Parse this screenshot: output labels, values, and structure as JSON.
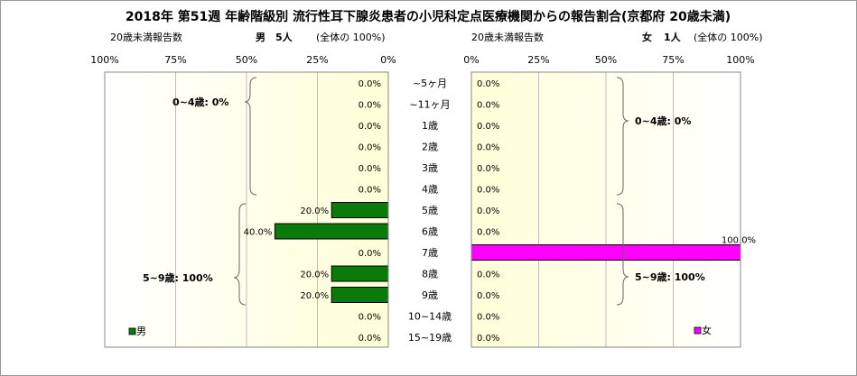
{
  "title": "2018年 第51週 年齢階級別 流行性耳下腺炎患者の小児科定点医療機関からの報告割合(京都府 20歳未満)",
  "left_header": {
    "caption": "20歳未満報告数",
    "sex_label": "男",
    "count_text": "5人",
    "total_text": "(全体の 100%)"
  },
  "right_header": {
    "caption": "20歳未満報告数",
    "sex_label": "女",
    "count_text": "1人",
    "total_text": "(全体の 100%)"
  },
  "left_group_labels": [
    "0~4歳: 0%",
    "5~9歳: 100%"
  ],
  "right_group_labels": [
    "0~4歳: 0%",
    "5~9歳: 100%"
  ],
  "legend": {
    "male": "男",
    "female": "女"
  },
  "colors": {
    "male": "#0a7a0a",
    "female": "#ff00ff",
    "plot_bg_center": "#ffffe0",
    "plot_bg_edge": "#ffffff",
    "grid": "#bdbdbd"
  },
  "chart_data": [
    {
      "type": "bar",
      "orientation": "horizontal",
      "direction": "right-to-left",
      "categories": [
        "~5ヶ月",
        "~11ヶ月",
        "1歳",
        "2歳",
        "3歳",
        "4歳",
        "5歳",
        "6歳",
        "7歳",
        "8歳",
        "9歳",
        "10~14歳",
        "15~19歳"
      ],
      "series": [
        {
          "name": "男",
          "values": [
            0,
            0,
            0,
            0,
            0,
            0,
            20,
            40,
            0,
            20,
            20,
            0,
            0
          ]
        }
      ],
      "data_labels": [
        "0.0%",
        "0.0%",
        "0.0%",
        "0.0%",
        "0.0%",
        "0.0%",
        "20.0%",
        "40.0%",
        "0.0%",
        "20.0%",
        "20.0%",
        "0.0%",
        "0.0%"
      ],
      "xlim": [
        0,
        100
      ],
      "x_ticks": [
        "100%",
        "75%",
        "50%",
        "25%",
        "0%"
      ],
      "grid": true,
      "legend_position": "bottom-left"
    },
    {
      "type": "bar",
      "orientation": "horizontal",
      "direction": "left-to-right",
      "categories": [
        "~5ヶ月",
        "~11ヶ月",
        "1歳",
        "2歳",
        "3歳",
        "4歳",
        "5歳",
        "6歳",
        "7歳",
        "8歳",
        "9歳",
        "10~14歳",
        "15~19歳"
      ],
      "series": [
        {
          "name": "女",
          "values": [
            0,
            0,
            0,
            0,
            0,
            0,
            0,
            0,
            100,
            0,
            0,
            0,
            0
          ]
        }
      ],
      "data_labels": [
        "0.0%",
        "0.0%",
        "0.0%",
        "0.0%",
        "0.0%",
        "0.0%",
        "0.0%",
        "0.0%",
        "100.0%",
        "0.0%",
        "0.0%",
        "0.0%",
        "0.0%"
      ],
      "xlim": [
        0,
        100
      ],
      "x_ticks": [
        "0%",
        "25%",
        "50%",
        "75%",
        "100%"
      ],
      "grid": true,
      "legend_position": "bottom-right"
    }
  ]
}
